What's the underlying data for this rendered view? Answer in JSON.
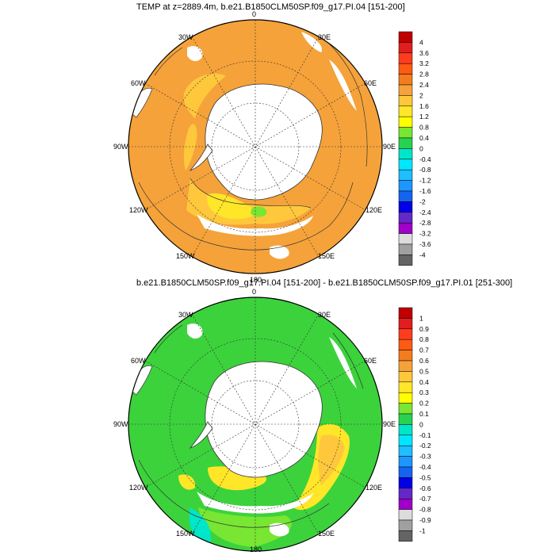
{
  "panels": [
    {
      "title": "TEMP at z=2889.4m, b.e21.B1850CLM50SP.f09_g17.PI.04 [151-200]",
      "base_color": "#f5a23a",
      "lon_labels": [
        "0",
        "30E",
        "60E",
        "90E",
        "120E",
        "150E",
        "180",
        "150W",
        "120W",
        "90W",
        "60W",
        "30W"
      ],
      "colorbar": {
        "labels": [
          "4",
          "3.6",
          "3.2",
          "2.8",
          "2.4",
          "2",
          "1.6",
          "1.2",
          "0.8",
          "0.4",
          "0",
          "-0.4",
          "-0.8",
          "-1.2",
          "-1.6",
          "-2",
          "-2.4",
          "-2.8",
          "-3.2",
          "-3.6",
          "-4"
        ],
        "colors": [
          "#c00000",
          "#e01e1e",
          "#ff3c1e",
          "#ff5a14",
          "#f57c1e",
          "#f5a23a",
          "#ffc83c",
          "#ffe628",
          "#ffff00",
          "#78e632",
          "#28d250",
          "#00e6c8",
          "#00e6ff",
          "#1ebeff",
          "#1e96ff",
          "#1464f0",
          "#0000e6",
          "#6428c8",
          "#a000c8",
          "#dcdcdc",
          "#a0a0a0",
          "#646464"
        ]
      }
    },
    {
      "title": "b.e21.B1850CLM50SP.f09_g17.PI.04 [151-200] - b.e21.B1850CLM50SP.f09_g17.PI.01 [251-300]",
      "base_color": "#3cd23c",
      "lon_labels": [
        "0",
        "30E",
        "60E",
        "90E",
        "120E",
        "150E",
        "180",
        "150W",
        "120W",
        "90W",
        "60W",
        "30W"
      ],
      "colorbar": {
        "labels": [
          "1",
          "0.9",
          "0.8",
          "0.7",
          "0.6",
          "0.5",
          "0.4",
          "0.3",
          "0.2",
          "0.1",
          "0",
          "-0.1",
          "-0.2",
          "-0.3",
          "-0.4",
          "-0.5",
          "-0.6",
          "-0.7",
          "-0.8",
          "-0.9",
          "-1"
        ],
        "colors": [
          "#c00000",
          "#e01e1e",
          "#ff3c1e",
          "#ff5a14",
          "#f57c1e",
          "#f5a23a",
          "#ffc83c",
          "#ffe628",
          "#ffff00",
          "#78e632",
          "#28d250",
          "#00e6c8",
          "#00e6ff",
          "#1ebeff",
          "#1e96ff",
          "#1464f0",
          "#0000e6",
          "#6428c8",
          "#a000c8",
          "#dcdcdc",
          "#a0a0a0",
          "#646464"
        ]
      }
    }
  ]
}
